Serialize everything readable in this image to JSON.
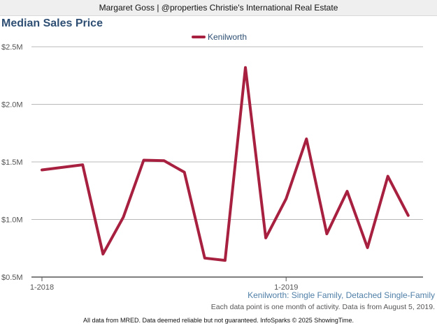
{
  "header": {
    "text": "Margaret Goss | @properties Christie's International Real Estate"
  },
  "chart_data": {
    "type": "line",
    "title": "Median Sales Price",
    "xlabel": "",
    "ylabel": "",
    "ylim": [
      500000,
      2500000
    ],
    "y_ticks": [
      {
        "value": 500000,
        "label": "$0.5M"
      },
      {
        "value": 1000000,
        "label": "$1.0M"
      },
      {
        "value": 1500000,
        "label": "$1.5M"
      },
      {
        "value": 2000000,
        "label": "$2.0M"
      },
      {
        "value": 2500000,
        "label": "$2.5M"
      }
    ],
    "x": [
      "2018-01",
      "2018-02",
      "2018-03",
      "2018-04",
      "2018-05",
      "2018-06",
      "2018-07",
      "2018-08",
      "2018-09",
      "2018-10",
      "2018-11",
      "2018-12",
      "2019-01",
      "2019-02",
      "2019-03",
      "2019-04",
      "2019-05",
      "2019-06",
      "2019-07"
    ],
    "x_ticks": [
      {
        "value": "2018-01",
        "label": "1-2018"
      },
      {
        "value": "2019-01",
        "label": "1-2019"
      }
    ],
    "series": [
      {
        "name": "Kenilworth",
        "color": "#a8203f",
        "values": [
          1430000,
          null,
          1475000,
          700000,
          1020000,
          1515000,
          1510000,
          1410000,
          665000,
          645000,
          2320000,
          840000,
          1180000,
          1700000,
          875000,
          1245000,
          755000,
          1375000,
          1035000
        ]
      }
    ],
    "legend_position": "top-center",
    "grid": "horizontal",
    "subtitle": "Kenilworth: Single Family, Detached Single-Family",
    "note": "Each data point is one month of activity. Data is from August 5, 2019."
  },
  "footer": {
    "text": "All data from MRED. Data deemed reliable but not guaranteed. InfoSparks © 2025 ShowingTime."
  }
}
